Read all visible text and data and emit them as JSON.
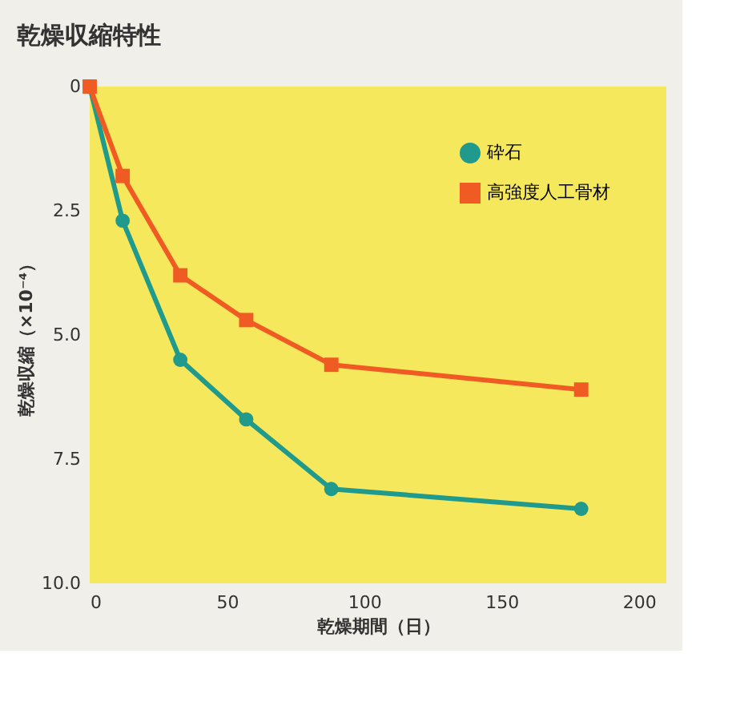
{
  "chart_data": {
    "type": "line",
    "title": "乾燥収縮特性",
    "xlabel": "乾燥期間（日）",
    "ylabel": "乾燥収縮（×10⁻⁴）",
    "xlim": [
      0,
      210
    ],
    "xticks": [
      0,
      50,
      100,
      150,
      200
    ],
    "ylim": [
      10,
      0
    ],
    "yticks": [
      {
        "value": 0,
        "label": "0"
      },
      2.5,
      {
        "value": 5,
        "label": "5.0"
      },
      7.5,
      {
        "value": 10,
        "label": "10.0"
      }
    ],
    "grid": false,
    "legend": "top right",
    "line_style": "solid",
    "series": [
      {
        "name": "砕石",
        "color": "#1f9a8c",
        "marker": "circle",
        "x": [
          0,
          12,
          33,
          57,
          88,
          179
        ],
        "values": [
          0,
          2.7,
          5.5,
          6.7,
          8.1,
          8.5
        ]
      },
      {
        "name": "高強度人工骨材",
        "color": "#f05a23",
        "marker": "square",
        "x": [
          0,
          12,
          33,
          57,
          88,
          179
        ],
        "values": [
          0,
          1.8,
          3.8,
          4.7,
          5.6,
          6.1
        ]
      }
    ]
  }
}
